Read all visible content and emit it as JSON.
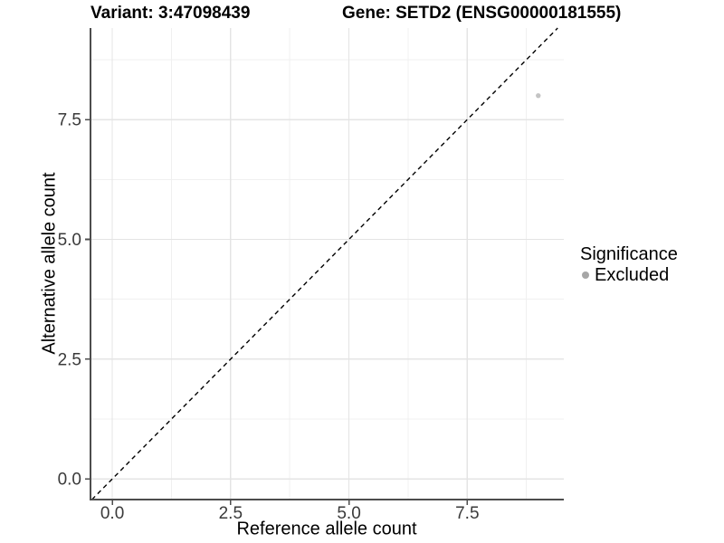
{
  "header": {
    "variant_title": "Variant: 3:47098439",
    "gene_title": "Gene: SETD2 (ENSG00000181555)"
  },
  "chart_data": {
    "type": "scatter",
    "xlabel": "Reference allele count",
    "ylabel": "Alternative allele count",
    "xlim": [
      -0.46,
      9.54
    ],
    "ylim": [
      -0.43,
      9.41
    ],
    "x_major_ticks": [
      0,
      2.5,
      5,
      7.5
    ],
    "x_tick_labels": [
      "0.0",
      "2.5",
      "5.0",
      "7.5"
    ],
    "y_major_ticks": [
      0,
      2.5,
      5,
      7.5
    ],
    "y_tick_labels": [
      "0.0",
      "2.5",
      "5.0",
      "7.5"
    ],
    "x_minor_ticks": [
      1.25,
      3.75,
      6.25,
      8.75
    ],
    "y_minor_ticks": [
      1.25,
      3.75,
      6.25,
      8.75
    ],
    "grid": "major+minor",
    "reference_line": {
      "slope": 1,
      "intercept": 0,
      "style": "dashed",
      "color": "#000000"
    },
    "series": [
      {
        "name": "Excluded",
        "points": [
          [
            9,
            8
          ]
        ],
        "point_color": "#c4c4c4",
        "point_radius": 2.7
      }
    ],
    "legend": {
      "position": "right",
      "title": "Significance",
      "items": [
        {
          "label": "Excluded",
          "key_color": "#a6a6a6"
        }
      ]
    },
    "colors": {
      "background": "#ffffff",
      "grid_major": "#e4e4e4",
      "grid_minor": "#f0f0f0",
      "axis_line": "#4d4d4d",
      "tick_mark": "#4d4d4d",
      "tick_label": "#3a3a3a",
      "text": "#000000"
    }
  }
}
